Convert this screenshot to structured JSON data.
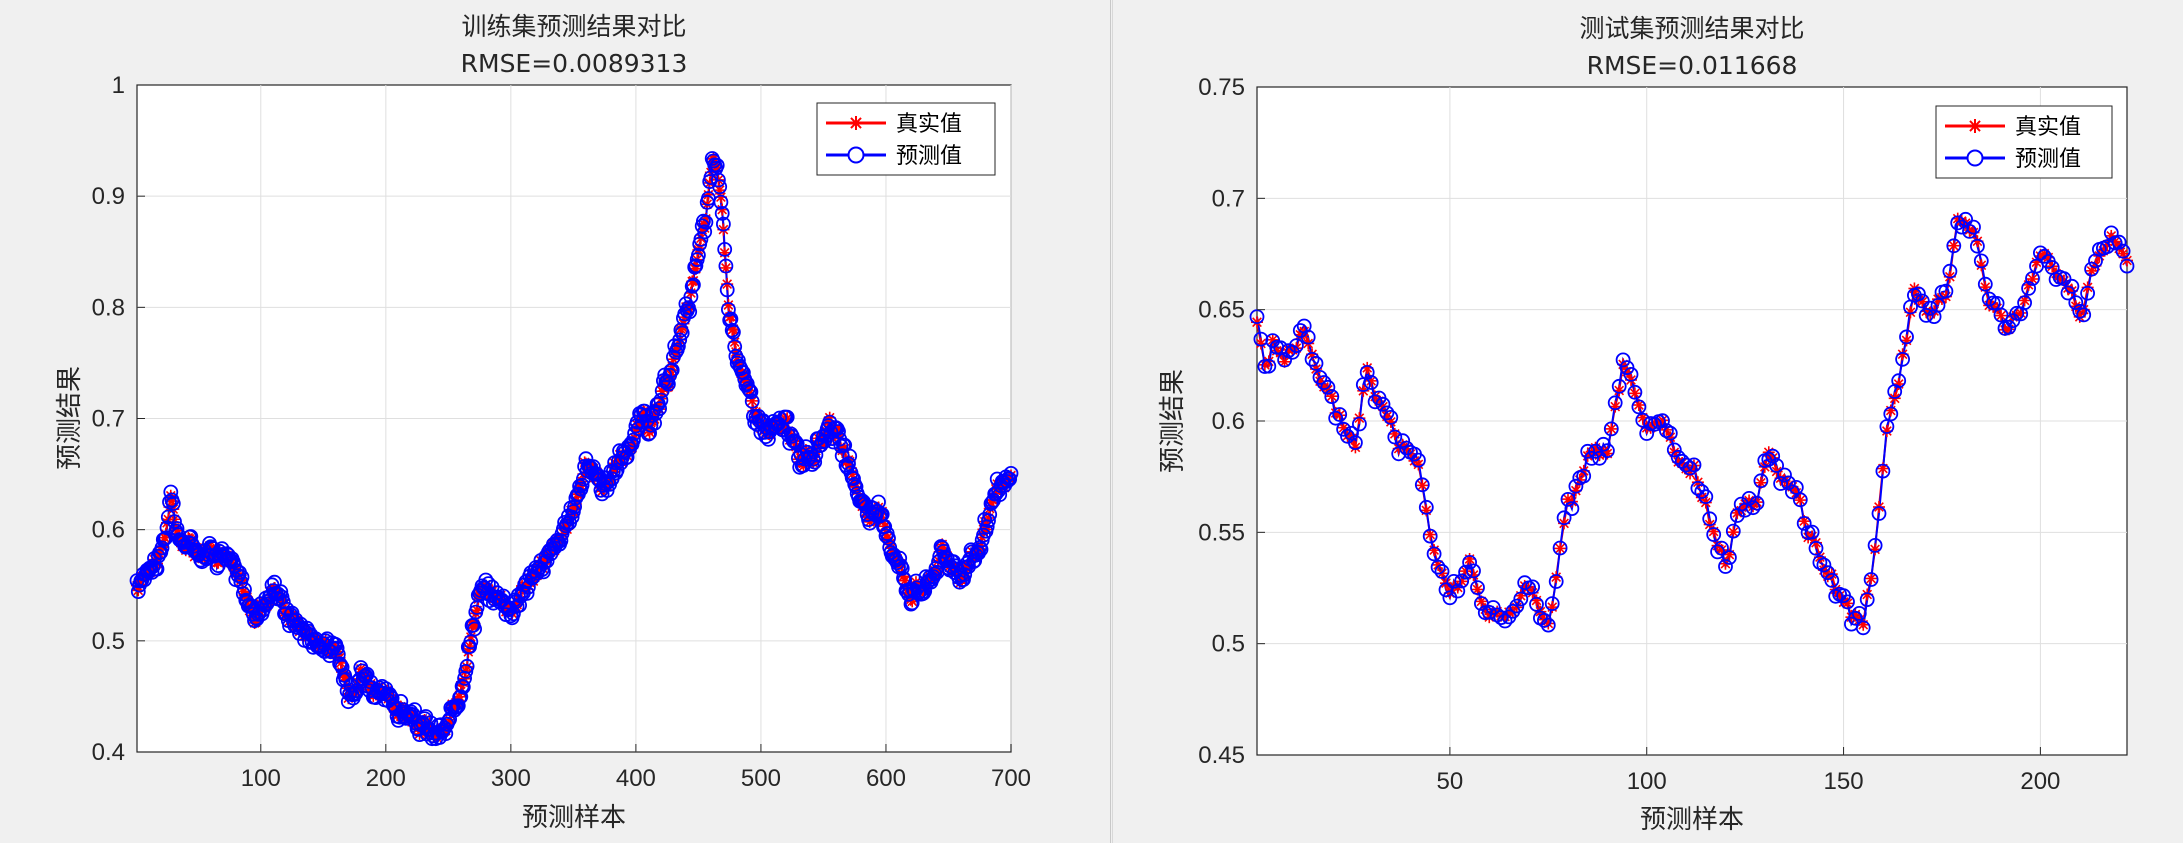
{
  "chart_data": [
    {
      "type": "line",
      "title": "训练集预测结果对比",
      "subtitle": "RMSE=0.0089313",
      "xlabel": "预测样本",
      "ylabel": "预测结果",
      "xlim": [
        1,
        700
      ],
      "ylim": [
        0.4,
        1.0
      ],
      "xticks": [
        100,
        200,
        300,
        400,
        500,
        600,
        700
      ],
      "yticks": [
        0.4,
        0.5,
        0.6,
        0.7,
        0.8,
        0.9,
        1.0
      ],
      "ytick_labels": [
        "0.4",
        "0.5",
        "0.6",
        "0.7",
        "0.8",
        "0.9",
        "1"
      ],
      "grid": true,
      "legend_position": "top-right",
      "x_step": 1,
      "anchors": [
        [
          1,
          0.545
        ],
        [
          10,
          0.57
        ],
        [
          20,
          0.575
        ],
        [
          28,
          0.625
        ],
        [
          35,
          0.59
        ],
        [
          50,
          0.583
        ],
        [
          70,
          0.58
        ],
        [
          85,
          0.55
        ],
        [
          95,
          0.52
        ],
        [
          110,
          0.55
        ],
        [
          125,
          0.52
        ],
        [
          140,
          0.505
        ],
        [
          160,
          0.49
        ],
        [
          170,
          0.455
        ],
        [
          180,
          0.475
        ],
        [
          195,
          0.45
        ],
        [
          210,
          0.44
        ],
        [
          225,
          0.425
        ],
        [
          240,
          0.415
        ],
        [
          250,
          0.42
        ],
        [
          262,
          0.47
        ],
        [
          275,
          0.545
        ],
        [
          290,
          0.54
        ],
        [
          300,
          0.53
        ],
        [
          315,
          0.555
        ],
        [
          330,
          0.575
        ],
        [
          345,
          0.6
        ],
        [
          360,
          0.66
        ],
        [
          375,
          0.64
        ],
        [
          395,
          0.675
        ],
        [
          405,
          0.7
        ],
        [
          415,
          0.695
        ],
        [
          430,
          0.75
        ],
        [
          445,
          0.82
        ],
        [
          455,
          0.87
        ],
        [
          462,
          0.935
        ],
        [
          468,
          0.9
        ],
        [
          475,
          0.79
        ],
        [
          490,
          0.72
        ],
        [
          505,
          0.685
        ],
        [
          520,
          0.695
        ],
        [
          530,
          0.665
        ],
        [
          545,
          0.67
        ],
        [
          555,
          0.7
        ],
        [
          570,
          0.655
        ],
        [
          585,
          0.615
        ],
        [
          598,
          0.61
        ],
        [
          608,
          0.575
        ],
        [
          620,
          0.545
        ],
        [
          633,
          0.55
        ],
        [
          645,
          0.58
        ],
        [
          660,
          0.56
        ],
        [
          675,
          0.585
        ],
        [
          690,
          0.635
        ],
        [
          700,
          0.645
        ]
      ],
      "noise": 0.012,
      "series": [
        {
          "name": "真实值",
          "color": "#ff0000",
          "marker": "asterisk"
        },
        {
          "name": "预测值",
          "color": "#0000ff",
          "marker": "circle"
        }
      ]
    },
    {
      "type": "line",
      "title": "测试集预测结果对比",
      "subtitle": "RMSE=0.011668",
      "xlabel": "预测样本",
      "ylabel": "预测结果",
      "xlim": [
        1,
        222
      ],
      "ylim": [
        0.45,
        0.75
      ],
      "xticks": [
        50,
        100,
        150,
        200
      ],
      "yticks": [
        0.45,
        0.5,
        0.55,
        0.6,
        0.65,
        0.7,
        0.75
      ],
      "ytick_labels": [
        "0.45",
        "0.5",
        "0.55",
        "0.6",
        "0.65",
        "0.7",
        "0.75"
      ],
      "grid": true,
      "legend_position": "top-right",
      "x_step": 1,
      "anchors": [
        [
          1,
          0.645
        ],
        [
          3,
          0.625
        ],
        [
          5,
          0.635
        ],
        [
          8,
          0.63
        ],
        [
          13,
          0.64
        ],
        [
          17,
          0.615
        ],
        [
          22,
          0.6
        ],
        [
          26,
          0.59
        ],
        [
          29,
          0.625
        ],
        [
          33,
          0.605
        ],
        [
          37,
          0.59
        ],
        [
          42,
          0.585
        ],
        [
          46,
          0.545
        ],
        [
          50,
          0.525
        ],
        [
          55,
          0.535
        ],
        [
          60,
          0.51
        ],
        [
          65,
          0.515
        ],
        [
          70,
          0.525
        ],
        [
          75,
          0.505
        ],
        [
          80,
          0.56
        ],
        [
          85,
          0.58
        ],
        [
          90,
          0.585
        ],
        [
          94,
          0.625
        ],
        [
          97,
          0.61
        ],
        [
          100,
          0.595
        ],
        [
          104,
          0.6
        ],
        [
          108,
          0.58
        ],
        [
          112,
          0.58
        ],
        [
          116,
          0.555
        ],
        [
          120,
          0.535
        ],
        [
          124,
          0.56
        ],
        [
          128,
          0.565
        ],
        [
          131,
          0.585
        ],
        [
          135,
          0.575
        ],
        [
          140,
          0.555
        ],
        [
          145,
          0.535
        ],
        [
          150,
          0.52
        ],
        [
          155,
          0.505
        ],
        [
          158,
          0.54
        ],
        [
          161,
          0.595
        ],
        [
          165,
          0.63
        ],
        [
          168,
          0.655
        ],
        [
          172,
          0.65
        ],
        [
          176,
          0.66
        ],
        [
          179,
          0.69
        ],
        [
          183,
          0.685
        ],
        [
          187,
          0.655
        ],
        [
          191,
          0.64
        ],
        [
          196,
          0.655
        ],
        [
          200,
          0.675
        ],
        [
          205,
          0.67
        ],
        [
          210,
          0.65
        ],
        [
          215,
          0.675
        ],
        [
          218,
          0.68
        ],
        [
          222,
          0.67
        ]
      ],
      "noise": 0.007,
      "series": [
        {
          "name": "真实值",
          "color": "#ff0000",
          "marker": "asterisk"
        },
        {
          "name": "预测值",
          "color": "#0000ff",
          "marker": "circle"
        }
      ]
    }
  ]
}
